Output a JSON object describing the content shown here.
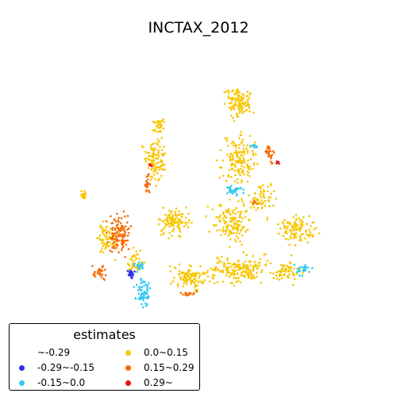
{
  "title": "INCTAX_2012",
  "legend": {
    "title": "estimates",
    "items": [
      {
        "label": "~-0.29",
        "color": "#ffffff"
      },
      {
        "label": "-0.29~-0.15",
        "color": "#2f2fe8"
      },
      {
        "label": "-0.15~0.0",
        "color": "#33c9f0"
      },
      {
        "label": "0.0~0.15",
        "color": "#f7c600"
      },
      {
        "label": "0.15~0.29",
        "color": "#f76a00"
      },
      {
        "label": "0.29~",
        "color": "#e8120a"
      }
    ]
  }
}
